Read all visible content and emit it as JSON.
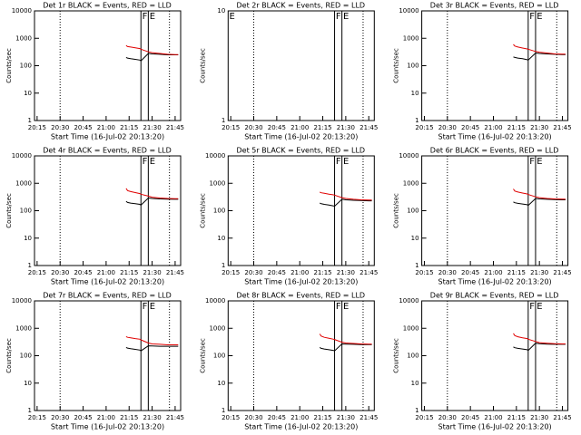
{
  "chart_data": [
    {
      "type": "line",
      "title": "Det 1r BLACK = Events, RED = LLD",
      "xlabel": "Start Time (16-Jul-02 20:13:20)",
      "ylabel": "Counts/sec",
      "log": true,
      "xlim": [
        13.3,
        108.6
      ],
      "xticks": [
        {
          "value": 15,
          "label": "20:15"
        },
        {
          "value": 30,
          "label": "20:30"
        },
        {
          "value": 45,
          "label": "20:45"
        },
        {
          "value": 60,
          "label": "21:00"
        },
        {
          "value": 75,
          "label": "21:15"
        },
        {
          "value": 90,
          "label": "21:30"
        },
        {
          "value": 105,
          "label": "21:45"
        }
      ],
      "ylim": [
        1,
        10000
      ],
      "yticks": [
        1,
        10,
        100,
        1000,
        10000
      ],
      "vlines": [
        {
          "x": 30,
          "dash": true
        },
        {
          "x": 82.7,
          "dash": false
        },
        {
          "x": 87.5,
          "dash": false
        },
        {
          "x": 101.3,
          "dash": true
        }
      ],
      "annotations": [
        {
          "text": "F",
          "x": 83.5
        },
        {
          "text": "E",
          "x": 88.3
        }
      ],
      "x": [
        73,
        74,
        76,
        79,
        82,
        82.7,
        87.5,
        90,
        95,
        100,
        105,
        107
      ],
      "series": [
        {
          "color": "#000000",
          "values": [
            200,
            190,
            180,
            170,
            160,
            150,
            280,
            270,
            260,
            250,
            250,
            250
          ]
        },
        {
          "color": "#e00000",
          "values": [
            550,
            500,
            480,
            450,
            420,
            400,
            320,
            300,
            280,
            260,
            255,
            255
          ]
        }
      ]
    },
    {
      "type": "line",
      "title": "Det 2r BLACK = Events, RED = LLD",
      "xlabel": "Start Time (16-Jul-02 20:13:20)",
      "ylabel": "Counts/sec",
      "log": true,
      "xlim": [
        13.3,
        108.6
      ],
      "xticks": [
        {
          "value": 15,
          "label": "20:15"
        },
        {
          "value": 30,
          "label": "20:30"
        },
        {
          "value": 45,
          "label": "20:45"
        },
        {
          "value": 60,
          "label": "21:00"
        },
        {
          "value": 75,
          "label": "21:15"
        },
        {
          "value": 90,
          "label": "21:30"
        },
        {
          "value": 105,
          "label": "21:45"
        }
      ],
      "ylim": [
        1,
        10
      ],
      "yticks": [
        1,
        10
      ],
      "vlines": [
        {
          "x": 30,
          "dash": true
        },
        {
          "x": 82.7,
          "dash": false
        },
        {
          "x": 87.5,
          "dash": false
        },
        {
          "x": 101.3,
          "dash": true
        }
      ],
      "annotations": [
        {
          "text": "E",
          "x": 14
        },
        {
          "text": "F",
          "x": 83.5
        },
        {
          "text": "E",
          "x": 88.3
        }
      ],
      "x": [],
      "series": []
    },
    {
      "type": "line",
      "title": "Det 3r BLACK = Events, RED = LLD",
      "xlabel": "Start Time (16-Jul-02 20:13:20)",
      "ylabel": "Counts/sec",
      "log": true,
      "xlim": [
        13.3,
        108.6
      ],
      "xticks": [
        {
          "value": 15,
          "label": "20:15"
        },
        {
          "value": 30,
          "label": "20:30"
        },
        {
          "value": 45,
          "label": "20:45"
        },
        {
          "value": 60,
          "label": "21:00"
        },
        {
          "value": 75,
          "label": "21:15"
        },
        {
          "value": 90,
          "label": "21:30"
        },
        {
          "value": 105,
          "label": "21:45"
        }
      ],
      "ylim": [
        1,
        10000
      ],
      "yticks": [
        1,
        10,
        100,
        1000,
        10000
      ],
      "vlines": [
        {
          "x": 30,
          "dash": true
        },
        {
          "x": 82.7,
          "dash": false
        },
        {
          "x": 87.5,
          "dash": false
        },
        {
          "x": 101.3,
          "dash": true
        }
      ],
      "annotations": [
        {
          "text": "F",
          "x": 83.5
        },
        {
          "text": "E",
          "x": 88.3
        }
      ],
      "x": [
        73,
        74,
        76,
        79,
        82,
        82.7,
        87.5,
        90,
        95,
        100,
        105,
        107
      ],
      "series": [
        {
          "color": "#000000",
          "values": [
            210,
            200,
            190,
            180,
            165,
            160,
            290,
            280,
            270,
            260,
            255,
            255
          ]
        },
        {
          "color": "#e00000",
          "values": [
            600,
            520,
            480,
            440,
            410,
            400,
            330,
            310,
            290,
            270,
            265,
            265
          ]
        }
      ]
    },
    {
      "type": "line",
      "title": "Det 4r BLACK = Events, RED = LLD",
      "xlabel": "Start Time (16-Jul-02 20:13:20)",
      "ylabel": "Counts/sec",
      "log": true,
      "xlim": [
        13.3,
        108.6
      ],
      "xticks": [
        {
          "value": 15,
          "label": "20:15"
        },
        {
          "value": 30,
          "label": "20:30"
        },
        {
          "value": 45,
          "label": "20:45"
        },
        {
          "value": 60,
          "label": "21:00"
        },
        {
          "value": 75,
          "label": "21:15"
        },
        {
          "value": 90,
          "label": "21:30"
        },
        {
          "value": 105,
          "label": "21:45"
        }
      ],
      "ylim": [
        1,
        10000
      ],
      "yticks": [
        1,
        10,
        100,
        1000,
        10000
      ],
      "vlines": [
        {
          "x": 30,
          "dash": true
        },
        {
          "x": 82.7,
          "dash": false
        },
        {
          "x": 87.5,
          "dash": false
        },
        {
          "x": 101.3,
          "dash": true
        }
      ],
      "annotations": [
        {
          "text": "F",
          "x": 83.5
        },
        {
          "text": "E",
          "x": 88.3
        }
      ],
      "x": [
        73,
        74,
        76,
        79,
        82,
        82.7,
        87.5,
        90,
        95,
        100,
        105,
        107
      ],
      "series": [
        {
          "color": "#000000",
          "values": [
            220,
            200,
            190,
            180,
            170,
            160,
            290,
            280,
            270,
            265,
            260,
            260
          ]
        },
        {
          "color": "#e00000",
          "values": [
            650,
            540,
            500,
            460,
            420,
            400,
            340,
            310,
            290,
            280,
            275,
            275
          ]
        }
      ]
    },
    {
      "type": "line",
      "title": "Det 5r BLACK = Events, RED = LLD",
      "xlabel": "Start Time (16-Jul-02 20:13:20)",
      "ylabel": "Counts/sec",
      "log": true,
      "xlim": [
        13.3,
        108.6
      ],
      "xticks": [
        {
          "value": 15,
          "label": "20:15"
        },
        {
          "value": 30,
          "label": "20:30"
        },
        {
          "value": 45,
          "label": "20:45"
        },
        {
          "value": 60,
          "label": "21:00"
        },
        {
          "value": 75,
          "label": "21:15"
        },
        {
          "value": 90,
          "label": "21:30"
        },
        {
          "value": 105,
          "label": "21:45"
        }
      ],
      "ylim": [
        1,
        10000
      ],
      "yticks": [
        1,
        10,
        100,
        1000,
        10000
      ],
      "vlines": [
        {
          "x": 30,
          "dash": true
        },
        {
          "x": 82.7,
          "dash": false
        },
        {
          "x": 87.5,
          "dash": false
        },
        {
          "x": 101.3,
          "dash": true
        }
      ],
      "annotations": [
        {
          "text": "F",
          "x": 83.5
        },
        {
          "text": "E",
          "x": 88.3
        }
      ],
      "x": [
        73,
        74,
        76,
        79,
        82,
        82.7,
        87.5,
        90,
        95,
        100,
        105,
        107
      ],
      "series": [
        {
          "color": "#000000",
          "values": [
            190,
            180,
            170,
            160,
            150,
            145,
            260,
            250,
            240,
            235,
            230,
            230
          ]
        },
        {
          "color": "#e00000",
          "values": [
            480,
            450,
            430,
            400,
            380,
            370,
            300,
            280,
            260,
            250,
            245,
            245
          ]
        }
      ]
    },
    {
      "type": "line",
      "title": "Det 6r BLACK = Events, RED = LLD",
      "xlabel": "Start Time (16-Jul-02 20:13:20)",
      "ylabel": "Counts/sec",
      "log": true,
      "xlim": [
        13.3,
        108.6
      ],
      "xticks": [
        {
          "value": 15,
          "label": "20:15"
        },
        {
          "value": 30,
          "label": "20:30"
        },
        {
          "value": 45,
          "label": "20:45"
        },
        {
          "value": 60,
          "label": "21:00"
        },
        {
          "value": 75,
          "label": "21:15"
        },
        {
          "value": 90,
          "label": "21:30"
        },
        {
          "value": 105,
          "label": "21:45"
        }
      ],
      "ylim": [
        1,
        10000
      ],
      "yticks": [
        1,
        10,
        100,
        1000,
        10000
      ],
      "vlines": [
        {
          "x": 30,
          "dash": true
        },
        {
          "x": 82.7,
          "dash": false
        },
        {
          "x": 87.5,
          "dash": false
        },
        {
          "x": 101.3,
          "dash": true
        }
      ],
      "annotations": [
        {
          "text": "F",
          "x": 83.5
        },
        {
          "text": "E",
          "x": 88.3
        }
      ],
      "x": [
        73,
        74,
        76,
        79,
        82,
        82.7,
        87.5,
        90,
        95,
        100,
        105,
        107
      ],
      "series": [
        {
          "color": "#000000",
          "values": [
            210,
            195,
            185,
            175,
            165,
            155,
            280,
            270,
            260,
            255,
            250,
            250
          ]
        },
        {
          "color": "#e00000",
          "values": [
            620,
            520,
            480,
            440,
            410,
            390,
            320,
            300,
            280,
            270,
            265,
            265
          ]
        }
      ]
    },
    {
      "type": "line",
      "title": "Det 7r BLACK = Events, RED = LLD",
      "xlabel": "Start Time (16-Jul-02 20:13:20)",
      "ylabel": "Counts/sec",
      "log": true,
      "xlim": [
        13.3,
        108.6
      ],
      "xticks": [
        {
          "value": 15,
          "label": "20:15"
        },
        {
          "value": 30,
          "label": "20:30"
        },
        {
          "value": 45,
          "label": "20:45"
        },
        {
          "value": 60,
          "label": "21:00"
        },
        {
          "value": 75,
          "label": "21:15"
        },
        {
          "value": 90,
          "label": "21:30"
        },
        {
          "value": 105,
          "label": "21:45"
        }
      ],
      "ylim": [
        1,
        10000
      ],
      "yticks": [
        1,
        10,
        100,
        1000,
        10000
      ],
      "vlines": [
        {
          "x": 30,
          "dash": true
        },
        {
          "x": 82.7,
          "dash": false
        },
        {
          "x": 87.5,
          "dash": false
        },
        {
          "x": 101.3,
          "dash": true
        }
      ],
      "annotations": [
        {
          "text": "F",
          "x": 83.5
        },
        {
          "text": "E",
          "x": 88.3
        }
      ],
      "x": [
        73,
        74,
        76,
        79,
        82,
        82.7,
        87.5,
        90,
        95,
        100,
        105,
        107
      ],
      "series": [
        {
          "color": "#000000",
          "values": [
            200,
            190,
            180,
            170,
            160,
            150,
            230,
            225,
            220,
            220,
            220,
            220
          ]
        },
        {
          "color": "#e00000",
          "values": [
            500,
            470,
            450,
            420,
            400,
            380,
            290,
            270,
            260,
            250,
            250,
            250
          ]
        }
      ]
    },
    {
      "type": "line",
      "title": "Det 8r BLACK = Events, RED = LLD",
      "xlabel": "Start Time (16-Jul-02 20:13:20)",
      "ylabel": "Counts/sec",
      "log": true,
      "xlim": [
        13.3,
        108.6
      ],
      "xticks": [
        {
          "value": 15,
          "label": "20:15"
        },
        {
          "value": 30,
          "label": "20:30"
        },
        {
          "value": 45,
          "label": "20:45"
        },
        {
          "value": 60,
          "label": "21:00"
        },
        {
          "value": 75,
          "label": "21:15"
        },
        {
          "value": 90,
          "label": "21:30"
        },
        {
          "value": 105,
          "label": "21:45"
        }
      ],
      "ylim": [
        1,
        10000
      ],
      "yticks": [
        1,
        10,
        100,
        1000,
        10000
      ],
      "vlines": [
        {
          "x": 30,
          "dash": true
        },
        {
          "x": 82.7,
          "dash": false
        },
        {
          "x": 87.5,
          "dash": false
        },
        {
          "x": 101.3,
          "dash": true
        }
      ],
      "annotations": [
        {
          "text": "F",
          "x": 83.5
        },
        {
          "text": "E",
          "x": 88.3
        }
      ],
      "x": [
        73,
        74,
        76,
        79,
        82,
        82.7,
        87.5,
        90,
        95,
        100,
        105,
        107
      ],
      "series": [
        {
          "color": "#000000",
          "values": [
            200,
            185,
            175,
            165,
            155,
            150,
            270,
            265,
            260,
            255,
            255,
            255
          ]
        },
        {
          "color": "#e00000",
          "values": [
            620,
            520,
            470,
            430,
            400,
            390,
            310,
            290,
            280,
            270,
            265,
            265
          ]
        }
      ]
    },
    {
      "type": "line",
      "title": "Det 9r BLACK = Events, RED = LLD",
      "xlabel": "Start Time (16-Jul-02 20:13:20)",
      "ylabel": "Counts/sec",
      "log": true,
      "xlim": [
        13.3,
        108.6
      ],
      "xticks": [
        {
          "value": 15,
          "label": "20:15"
        },
        {
          "value": 30,
          "label": "20:30"
        },
        {
          "value": 45,
          "label": "20:45"
        },
        {
          "value": 60,
          "label": "21:00"
        },
        {
          "value": 75,
          "label": "21:15"
        },
        {
          "value": 90,
          "label": "21:30"
        },
        {
          "value": 105,
          "label": "21:45"
        }
      ],
      "ylim": [
        1,
        10000
      ],
      "yticks": [
        1,
        10,
        100,
        1000,
        10000
      ],
      "vlines": [
        {
          "x": 30,
          "dash": true
        },
        {
          "x": 82.7,
          "dash": false
        },
        {
          "x": 87.5,
          "dash": false
        },
        {
          "x": 101.3,
          "dash": true
        }
      ],
      "annotations": [
        {
          "text": "F",
          "x": 83.5
        },
        {
          "text": "E",
          "x": 88.3
        }
      ],
      "x": [
        73,
        74,
        76,
        79,
        82,
        82.7,
        87.5,
        90,
        95,
        100,
        105,
        107
      ],
      "series": [
        {
          "color": "#000000",
          "values": [
            210,
            195,
            185,
            175,
            165,
            155,
            285,
            275,
            265,
            260,
            260,
            260
          ]
        },
        {
          "color": "#e00000",
          "values": [
            650,
            540,
            490,
            450,
            420,
            400,
            330,
            300,
            285,
            275,
            270,
            270
          ]
        }
      ]
    }
  ]
}
